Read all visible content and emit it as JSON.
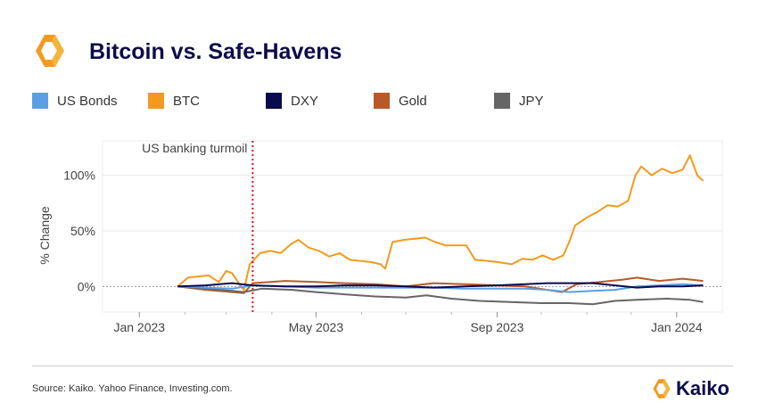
{
  "header": {
    "title": "Bitcoin vs. Safe-Havens",
    "brand": "Kaiko"
  },
  "footer": {
    "source": "Source: Kaiko. Yahoo Finance, Investing.com."
  },
  "colors": {
    "title": "#0d0c4a",
    "brand_orange": "#f39a1e",
    "event_line": "#e0161b"
  },
  "chart_data": {
    "type": "line",
    "title": "Bitcoin vs. Safe-Havens",
    "ylabel": "% Change",
    "xlabel": "",
    "xlim": [
      "2022-12-07",
      "2024-02-01"
    ],
    "ylim": [
      -23,
      131
    ],
    "yticks": [
      0,
      50,
      100
    ],
    "ytick_labels": [
      "0%",
      "50%",
      "100%"
    ],
    "xticks": [
      "2023-01-01",
      "2023-05-01",
      "2023-09-01",
      "2024-01-01"
    ],
    "xtick_labels": [
      "Jan 2023",
      "May 2023",
      "Sep 2023",
      "Jan 2024"
    ],
    "grid": true,
    "legend": "top",
    "annotation": {
      "label": "US banking turmoil",
      "date": "2023-03-19"
    },
    "series": [
      {
        "name": "US Bonds",
        "color": "#5b9ee6",
        "points": [
          [
            "2023-01-27",
            0
          ],
          [
            "2023-02-15",
            -1
          ],
          [
            "2023-03-05",
            -2
          ],
          [
            "2023-03-19",
            1
          ],
          [
            "2023-04-10",
            0
          ],
          [
            "2023-05-01",
            -1
          ],
          [
            "2023-05-20",
            -1
          ],
          [
            "2023-06-10",
            -1
          ],
          [
            "2023-07-01",
            -1
          ],
          [
            "2023-07-20",
            -1
          ],
          [
            "2023-08-10",
            -2
          ],
          [
            "2023-09-01",
            -2
          ],
          [
            "2023-09-20",
            -2
          ],
          [
            "2023-10-05",
            -3
          ],
          [
            "2023-10-20",
            -5
          ],
          [
            "2023-11-05",
            -4
          ],
          [
            "2023-11-20",
            -3
          ],
          [
            "2023-12-05",
            0
          ],
          [
            "2023-12-20",
            1
          ],
          [
            "2024-01-05",
            2
          ],
          [
            "2024-01-19",
            1
          ]
        ]
      },
      {
        "name": "BTC",
        "color": "#f39a1e",
        "points": [
          [
            "2023-01-27",
            0
          ],
          [
            "2023-02-03",
            8
          ],
          [
            "2023-02-10",
            9
          ],
          [
            "2023-02-17",
            10
          ],
          [
            "2023-02-24",
            4
          ],
          [
            "2023-03-01",
            14
          ],
          [
            "2023-03-05",
            12
          ],
          [
            "2023-03-10",
            2
          ],
          [
            "2023-03-13",
            -3
          ],
          [
            "2023-03-17",
            20
          ],
          [
            "2023-03-24",
            30
          ],
          [
            "2023-03-31",
            32
          ],
          [
            "2023-04-07",
            30
          ],
          [
            "2023-04-14",
            38
          ],
          [
            "2023-04-19",
            42
          ],
          [
            "2023-04-26",
            35
          ],
          [
            "2023-05-03",
            32
          ],
          [
            "2023-05-10",
            27
          ],
          [
            "2023-05-17",
            30
          ],
          [
            "2023-05-24",
            24
          ],
          [
            "2023-05-31",
            23
          ],
          [
            "2023-06-07",
            22
          ],
          [
            "2023-06-14",
            20
          ],
          [
            "2023-06-17",
            16
          ],
          [
            "2023-06-22",
            40
          ],
          [
            "2023-06-30",
            42
          ],
          [
            "2023-07-07",
            43
          ],
          [
            "2023-07-14",
            44
          ],
          [
            "2023-07-21",
            40
          ],
          [
            "2023-07-28",
            37
          ],
          [
            "2023-08-04",
            37
          ],
          [
            "2023-08-11",
            37
          ],
          [
            "2023-08-17",
            24
          ],
          [
            "2023-08-25",
            23
          ],
          [
            "2023-09-01",
            22
          ],
          [
            "2023-09-11",
            20
          ],
          [
            "2023-09-18",
            25
          ],
          [
            "2023-09-25",
            24
          ],
          [
            "2023-10-02",
            28
          ],
          [
            "2023-10-09",
            24
          ],
          [
            "2023-10-16",
            28
          ],
          [
            "2023-10-20",
            40
          ],
          [
            "2023-10-24",
            55
          ],
          [
            "2023-11-01",
            62
          ],
          [
            "2023-11-08",
            67
          ],
          [
            "2023-11-15",
            73
          ],
          [
            "2023-11-22",
            72
          ],
          [
            "2023-11-29",
            77
          ],
          [
            "2023-12-04",
            100
          ],
          [
            "2023-12-08",
            108
          ],
          [
            "2023-12-15",
            100
          ],
          [
            "2023-12-22",
            106
          ],
          [
            "2023-12-29",
            102
          ],
          [
            "2024-01-05",
            105
          ],
          [
            "2024-01-10",
            118
          ],
          [
            "2024-01-15",
            100
          ],
          [
            "2024-01-19",
            95
          ]
        ]
      },
      {
        "name": "DXY",
        "color": "#0a0a4e",
        "points": [
          [
            "2023-01-27",
            0
          ],
          [
            "2023-02-15",
            1
          ],
          [
            "2023-03-05",
            3
          ],
          [
            "2023-03-19",
            1
          ],
          [
            "2023-04-10",
            0
          ],
          [
            "2023-05-01",
            0
          ],
          [
            "2023-05-20",
            1
          ],
          [
            "2023-06-10",
            1
          ],
          [
            "2023-07-01",
            0
          ],
          [
            "2023-07-20",
            -1
          ],
          [
            "2023-08-10",
            0
          ],
          [
            "2023-09-01",
            1
          ],
          [
            "2023-09-20",
            2
          ],
          [
            "2023-10-05",
            3
          ],
          [
            "2023-10-20",
            3
          ],
          [
            "2023-11-05",
            3
          ],
          [
            "2023-11-20",
            1
          ],
          [
            "2023-12-05",
            -1
          ],
          [
            "2023-12-20",
            0
          ],
          [
            "2024-01-05",
            0
          ],
          [
            "2024-01-19",
            1
          ]
        ]
      },
      {
        "name": "Gold",
        "color": "#b85a28",
        "points": [
          [
            "2023-01-27",
            0
          ],
          [
            "2023-02-15",
            -3
          ],
          [
            "2023-03-05",
            -5
          ],
          [
            "2023-03-13",
            -6
          ],
          [
            "2023-03-19",
            3
          ],
          [
            "2023-04-10",
            5
          ],
          [
            "2023-05-01",
            4
          ],
          [
            "2023-05-20",
            3
          ],
          [
            "2023-06-10",
            2
          ],
          [
            "2023-07-01",
            0
          ],
          [
            "2023-07-20",
            3
          ],
          [
            "2023-08-10",
            2
          ],
          [
            "2023-09-01",
            1
          ],
          [
            "2023-09-20",
            0
          ],
          [
            "2023-10-05",
            -3
          ],
          [
            "2023-10-15",
            -5
          ],
          [
            "2023-10-25",
            2
          ],
          [
            "2023-11-10",
            4
          ],
          [
            "2023-11-25",
            6
          ],
          [
            "2023-12-05",
            8
          ],
          [
            "2023-12-20",
            5
          ],
          [
            "2024-01-05",
            7
          ],
          [
            "2024-01-19",
            5
          ]
        ]
      },
      {
        "name": "JPY",
        "color": "#666666",
        "points": [
          [
            "2023-01-27",
            0
          ],
          [
            "2023-02-15",
            -2
          ],
          [
            "2023-03-05",
            -4
          ],
          [
            "2023-03-13",
            -5
          ],
          [
            "2023-03-25",
            -2
          ],
          [
            "2023-04-15",
            -3
          ],
          [
            "2023-05-01",
            -5
          ],
          [
            "2023-05-20",
            -7
          ],
          [
            "2023-06-10",
            -9
          ],
          [
            "2023-07-01",
            -10
          ],
          [
            "2023-07-15",
            -8
          ],
          [
            "2023-08-01",
            -11
          ],
          [
            "2023-08-20",
            -13
          ],
          [
            "2023-09-10",
            -14
          ],
          [
            "2023-10-01",
            -15
          ],
          [
            "2023-10-20",
            -15
          ],
          [
            "2023-11-05",
            -16
          ],
          [
            "2023-11-20",
            -13
          ],
          [
            "2023-12-05",
            -12
          ],
          [
            "2023-12-25",
            -11
          ],
          [
            "2024-01-10",
            -12
          ],
          [
            "2024-01-19",
            -14
          ]
        ]
      }
    ]
  }
}
